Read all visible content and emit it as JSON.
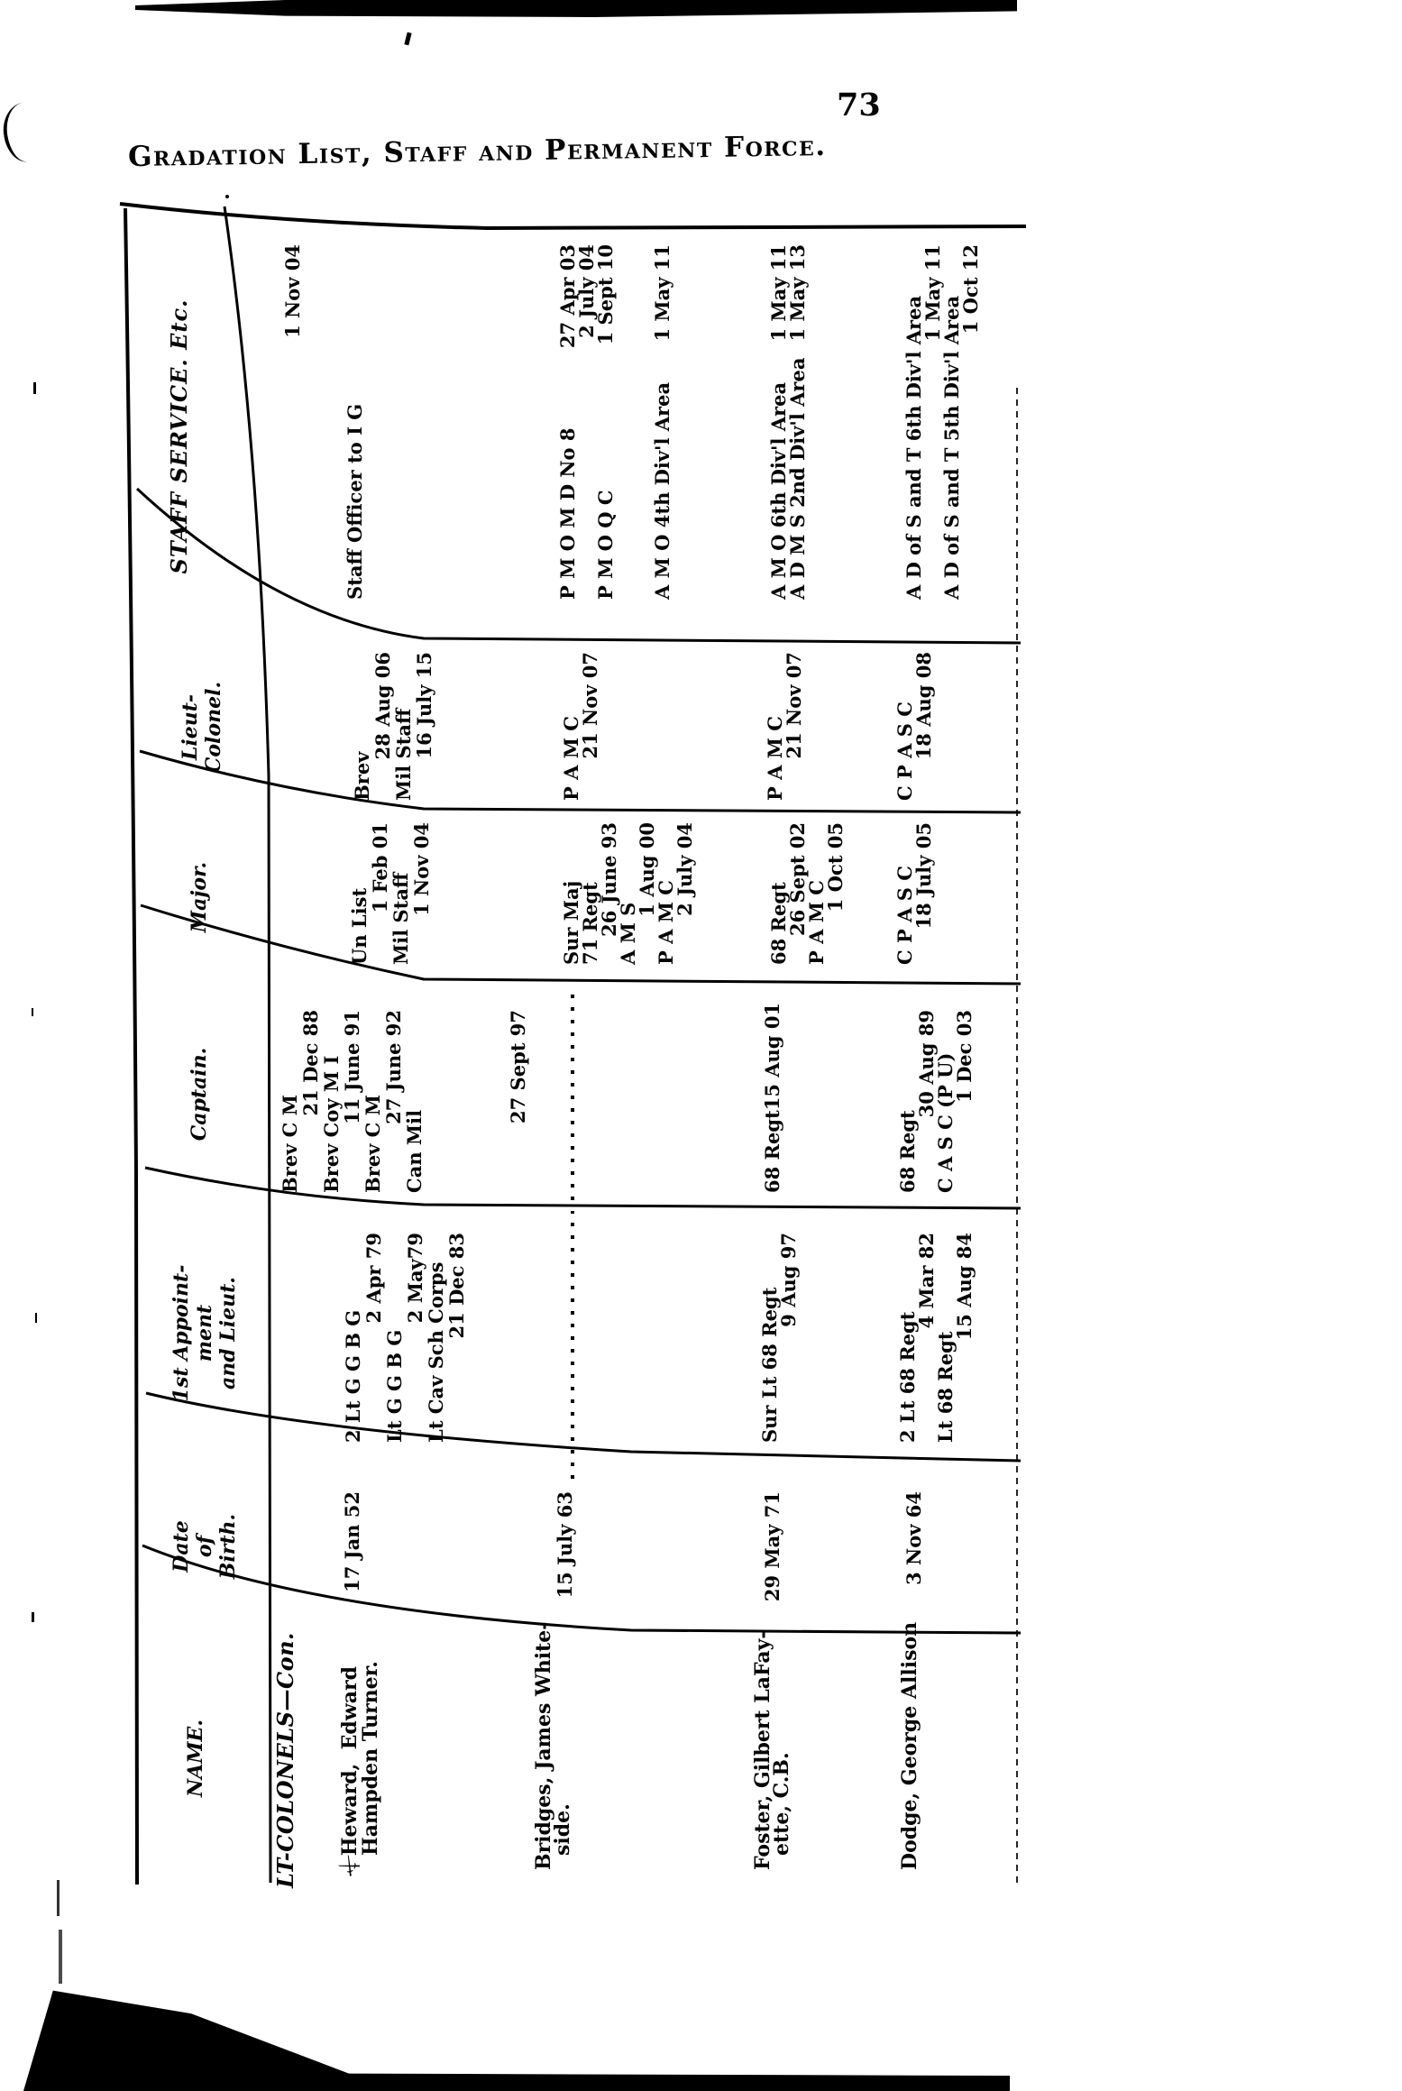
{
  "page": {
    "heading": "Gradation List, Staff and Permanent Force.",
    "page_number": "73"
  },
  "table": {
    "orientation_note": "table printed rotated 90 degrees counter-clockwise on page",
    "columns": [
      {
        "key": "name",
        "label_lines": [
          "NAME."
        ]
      },
      {
        "key": "dob",
        "label_lines": [
          "Date",
          "of",
          "Birth."
        ]
      },
      {
        "key": "appt",
        "label_lines": [
          "1st Appoint-",
          "ment",
          "and Lieut."
        ]
      },
      {
        "key": "capt",
        "label_lines": [
          "Captain."
        ]
      },
      {
        "key": "major",
        "label_lines": [
          "Major."
        ]
      },
      {
        "key": "ltcol",
        "label_lines": [
          "Lieut-",
          "Colonel."
        ]
      },
      {
        "key": "staff",
        "label_lines": [
          "STAFF SERVICE. Etc."
        ]
      }
    ],
    "section_heading": "LT-COLONELS—Con.",
    "rows": [
      {
        "id": "heward",
        "mark": "⚔",
        "name_lines": [
          "Heward,  Edward",
          "Hampden Turner."
        ],
        "dob": "17 Jan 52",
        "appt": [
          "2 Lt G G B G",
          "|2 Apr 79",
          "Lt G G B G",
          "|2 May79",
          "Lt Cav Sch Corps",
          "|21 Dec 83"
        ],
        "capt": [
          "Brev C M",
          "|21 Dec 88",
          "Brev Coy M I",
          "|11 June 91",
          "Brev C M",
          "|27 June 92",
          "Can Mil",
          "",
          "",
          "",
          "",
          "|27 Sept 97"
        ],
        "major": [
          "Un List",
          "|1 Feb 01",
          "Mil Staff",
          "|1 Nov 04"
        ],
        "ltcol": [
          "Brev",
          "|28 Aug 06",
          "Mil Staff",
          "|16 July 15"
        ],
        "staff": [
          "|1 Nov 04",
          "",
          "",
          "Staff Officer to I G"
        ]
      },
      {
        "id": "bridges",
        "mark": "",
        "name_lines": [
          "Bridges, James White-",
          "side."
        ],
        "dob": "15 July 63",
        "appt": "DOTS",
        "capt": "DOTS",
        "major": [
          "Sur Maj",
          "71 Regt",
          "|26 June 93",
          "A M S",
          "|1 Aug 00",
          "P A M C",
          "|2 July 04"
        ],
        "ltcol": [
          "P A M C",
          "|21 Nov 07"
        ],
        "staff": [
          "P M O M D No 8|27 Apr 03",
          "|2 July 04",
          "P M O Q C|1 Sept 10",
          "",
          "",
          "A M O 4th Div'l Area|1 May 11"
        ]
      },
      {
        "id": "foster",
        "mark": "",
        "name_lines": [
          "Foster, Gilbert LaFay-",
          "ette, C.B."
        ],
        "dob": "29 May 71",
        "appt": [
          "Sur Lt 68 Regt",
          "|9 Aug 97"
        ],
        "capt": [
          "68 Regt|15 Aug 01"
        ],
        "major": [
          "68 Regt",
          "|26 Sept 02",
          "P A M C",
          "|1 Oct 05"
        ],
        "ltcol": [
          "P A M C",
          "|21 Nov 07"
        ],
        "staff": [
          "A M O 6th Div'l Area|1 May 11",
          "A D M S 2nd Div'l Area|1 May 13"
        ]
      },
      {
        "id": "dodge",
        "mark": "",
        "name_lines": [
          "Dodge, George Allison"
        ],
        "dob": "3 Nov 64",
        "appt": [
          "2 Lt 68 Regt",
          "|4 Mar 82",
          "Lt 68 Regt",
          "|15 Aug 84"
        ],
        "capt": [
          "68 Regt",
          "|30 Aug 89",
          "C A S C (P U)",
          "|1 Dec 03"
        ],
        "major": [
          "C P A S C",
          "|18 July 05"
        ],
        "ltcol": [
          "C P A S C",
          "|18 Aug 08"
        ],
        "staff": [
          "A D of S and T 6th Div'l Area",
          "|1 May 11",
          "A D of S and T 5th Div'l Area",
          "|1 Oct 12"
        ]
      }
    ]
  }
}
